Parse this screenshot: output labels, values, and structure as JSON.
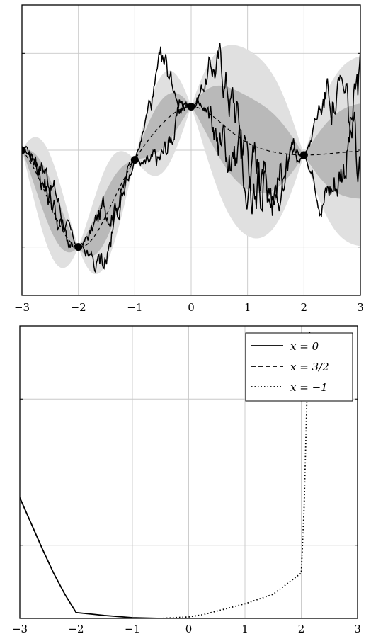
{
  "chart_data": [
    {
      "type": "line",
      "title": "",
      "xlabel": "",
      "ylabel": "",
      "xlim": [
        -3,
        3
      ],
      "ylim": [
        -3.0,
        3.0
      ],
      "grid": true,
      "x_ticks": [
        -3,
        -2,
        -1,
        0,
        1,
        2,
        3
      ],
      "x_tick_labels": [
        "−3",
        "−2",
        "−1",
        "0",
        "1",
        "2",
        "3"
      ],
      "y_ticks": [
        -2,
        0,
        2
      ],
      "observations": {
        "x": [
          -3,
          -2,
          -1,
          0,
          2
        ],
        "y": [
          0.0,
          -2.0,
          -0.2,
          0.9,
          -0.1
        ]
      },
      "mean_line": {
        "style": "dashed"
      },
      "bands": [
        "one standard deviation",
        "two standard deviations"
      ],
      "samples": 2,
      "colors": {
        "inner_band": "#b9b9b9",
        "outer_band": "#e0e0e0",
        "sample": "#000000",
        "mean": "#000000"
      }
    },
    {
      "type": "line",
      "title": "",
      "xlabel": "",
      "ylabel": "",
      "xlim": [
        -3,
        3
      ],
      "ylim": [
        0,
        4
      ],
      "grid": true,
      "x_ticks": [
        -3,
        -2,
        -1,
        0,
        1,
        2,
        3
      ],
      "x_tick_labels": [
        "−3",
        "−2",
        "−1",
        "0",
        "1",
        "2",
        "3"
      ],
      "y_ticks": [
        1,
        2,
        3
      ],
      "legend_position": "top-right",
      "series": [
        {
          "name": "x = 0",
          "style": "solid",
          "x": [
            -3,
            -2.8,
            -2.6,
            -2.4,
            -2.2,
            -2,
            -1.5,
            -1,
            -0.5,
            0,
            0.5,
            1,
            1.5,
            2,
            2.5,
            3
          ],
          "y": [
            1.65,
            1.3,
            0.95,
            0.62,
            0.33,
            0.08,
            0.04,
            0.01,
            0.0,
            0.0,
            0.0,
            0.0,
            0.0,
            0.0,
            0.0,
            0.0
          ]
        },
        {
          "name": "x = 3/2",
          "style": "dashed",
          "x": [
            -3,
            -2,
            -1,
            0,
            1,
            2,
            3
          ],
          "y": [
            0,
            0,
            0,
            0,
            0,
            0,
            0
          ]
        },
        {
          "name": "x = −1",
          "style": "dotted",
          "x": [
            -3,
            -2,
            -1,
            -0.5,
            0,
            0.25,
            0.5,
            1,
            1.5,
            2,
            2.05,
            2.1,
            2.15
          ],
          "y": [
            0.0,
            0.0,
            0.0,
            0.0,
            0.02,
            0.05,
            0.1,
            0.2,
            0.33,
            0.62,
            1.5,
            3.0,
            3.95
          ]
        }
      ]
    }
  ]
}
